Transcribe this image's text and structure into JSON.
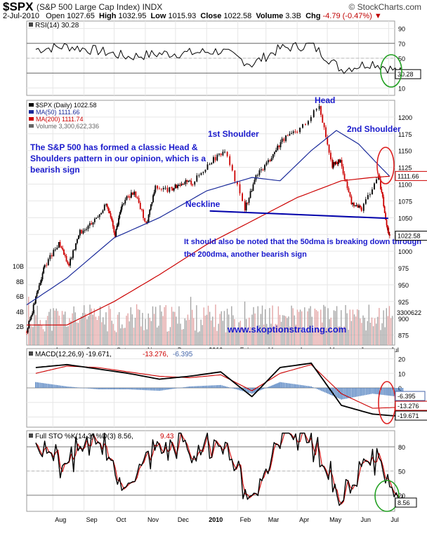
{
  "header": {
    "symbol": "$SPX",
    "description": "(S&P 500 Large Cap Index)",
    "exchange": "INDX",
    "brand": "© StockCharts.com",
    "date": "2-Jul-2010",
    "open_label": "Open",
    "open": "1027.65",
    "high_label": "High",
    "high": "1032.95",
    "low_label": "Low",
    "low": "1015.93",
    "close_label": "Close",
    "close": "1022.58",
    "volume_label": "Volume",
    "volume": "3.3B",
    "chg_label": "Chg",
    "chg": "-4.79 (-0.47%)",
    "chg_arrow": "▼"
  },
  "colors": {
    "price": "#000000",
    "up_candle": "#000000",
    "down_candle": "#cc0000",
    "ma50": "#1a2a9a",
    "ma200": "#cc0000",
    "volume_up": "#a6a6a6",
    "volume_down": "#e4a6a6",
    "annotation": "#1a1acc",
    "highlight": "#22a022",
    "macd_hist": "#4477bb"
  },
  "chart_data": [
    {
      "id": "rsi",
      "type": "line",
      "legend": "RSI(14) 30.28",
      "y_ticks": [
        10,
        30,
        50,
        70,
        90
      ],
      "ylim": [
        0,
        100
      ],
      "last_value_label": "30.28",
      "x": [
        "2009-07",
        "2009-08",
        "2009-09",
        "2009-10",
        "2009-11",
        "2009-12",
        "2010-01",
        "2010-02",
        "2010-03",
        "2010-04",
        "2010-05",
        "2010-06",
        "2010-07"
      ],
      "values": [
        62,
        66,
        60,
        52,
        56,
        57,
        60,
        42,
        63,
        68,
        35,
        44,
        30
      ]
    },
    {
      "id": "price",
      "type": "line",
      "legend": [
        {
          "name": "$SPX (Daily) 1022.58"
        },
        {
          "name": "MA(50) 1111.66"
        },
        {
          "name": "MA(200) 1111.74"
        },
        {
          "name": "Volume 3,300,622,336"
        }
      ],
      "y_ticks": [
        875,
        900,
        925,
        950,
        975,
        1000,
        1025,
        1050,
        1075,
        1100,
        1125,
        1150,
        1175,
        1200
      ],
      "ylim": [
        860,
        1225
      ],
      "volume_ticks": [
        "2B",
        "4B",
        "6B",
        "8B",
        "10B"
      ],
      "x_ticks": [
        "Aug",
        "Sep",
        "Oct",
        "Nov",
        "Dec",
        "2010",
        "Feb",
        "Mar",
        "Apr",
        "May",
        "Jun",
        "Jul"
      ],
      "series": [
        {
          "name": "$SPX",
          "x": [
            "2009-07-06",
            "2009-07-15",
            "2009-07-24",
            "2009-08-07",
            "2009-08-17",
            "2009-08-28",
            "2009-09-10",
            "2009-09-23",
            "2009-10-02",
            "2009-10-09",
            "2009-10-21",
            "2009-11-02",
            "2009-11-11",
            "2009-11-27",
            "2009-12-07",
            "2009-12-18",
            "2010-01-04",
            "2010-01-19",
            "2010-02-08",
            "2010-02-19",
            "2010-03-05",
            "2010-03-17",
            "2010-04-01",
            "2010-04-23",
            "2010-05-06",
            "2010-05-14",
            "2010-05-25",
            "2010-06-04",
            "2010-06-21",
            "2010-06-29",
            "2010-07-02"
          ],
          "values": [
            880,
            930,
            979,
            1010,
            980,
            1028,
            1045,
            1070,
            1025,
            1072,
            1090,
            1040,
            1095,
            1091,
            1103,
            1102,
            1133,
            1150,
            1064,
            1110,
            1138,
            1166,
            1178,
            1217,
            1128,
            1135,
            1070,
            1064,
            1113,
            1041,
            1022
          ]
        },
        {
          "name": "MA(50)",
          "x": [
            "2009-07-06",
            "2009-08-15",
            "2009-10-01",
            "2009-11-15",
            "2010-01-01",
            "2010-02-15",
            "2010-03-15",
            "2010-04-15",
            "2010-05-10",
            "2010-06-01",
            "2010-06-20",
            "2010-07-02"
          ],
          "values": [
            920,
            960,
            1020,
            1050,
            1090,
            1110,
            1105,
            1150,
            1180,
            1160,
            1130,
            1111.66
          ]
        },
        {
          "name": "MA(200)",
          "x": [
            "2009-07-06",
            "2009-08-15",
            "2009-10-01",
            "2009-11-15",
            "2010-01-01",
            "2010-02-15",
            "2010-04-01",
            "2010-05-15",
            "2010-06-15",
            "2010-07-02"
          ],
          "values": [
            890,
            890,
            925,
            965,
            1010,
            1045,
            1080,
            1105,
            1110,
            1111.74
          ]
        }
      ],
      "last_labels": [
        "1111.66",
        "1022.58",
        "3300622"
      ],
      "annotations": [
        "Head",
        "1st Shoulder",
        "2nd Shoulder",
        "The S&P 500 has formed a classic Head & Shoulders pattern in our opinion, which is a bearish sign",
        "Neckline",
        "It should also be noted that the 50dma is breaking down through the 200dma, another bearish sign",
        "www.skoptionstrading.com"
      ],
      "neckline": {
        "from": {
          "x": "2010-02-08",
          "y": 1058
        },
        "to": {
          "x": "2010-07-02",
          "y": 1049
        }
      }
    },
    {
      "id": "macd",
      "type": "line",
      "legend": "MACD(12,26,9) -19.671, -13.276, -6.395",
      "legend_parts": [
        "MACD(12,26,9) -19.671,",
        "-13.276,",
        "-6.395"
      ],
      "y_ticks": [
        -20,
        -10,
        0,
        10,
        20
      ],
      "ylim": [
        -27,
        27
      ],
      "last_labels": [
        "-6.395",
        "-13.276",
        "-19.671"
      ],
      "x": [
        "2009-07",
        "2009-08",
        "2009-09",
        "2009-10",
        "2009-11",
        "2009-12",
        "2010-01",
        "2010-02",
        "2010-03",
        "2010-04",
        "2010-05",
        "2010-06",
        "2010-07"
      ],
      "series": [
        {
          "name": "MACD",
          "values": [
            14,
            16,
            13,
            10,
            6,
            8,
            11,
            -6,
            14,
            17,
            -12,
            -18,
            -19.671
          ]
        },
        {
          "name": "Signal",
          "values": [
            10,
            15,
            14,
            11,
            8,
            7,
            9,
            -2,
            10,
            16,
            -4,
            -14,
            -13.276
          ]
        },
        {
          "name": "Histogram",
          "values": [
            4,
            1,
            -1,
            -1,
            -2,
            1,
            2,
            -4,
            4,
            1,
            -8,
            -4,
            -6.395
          ]
        }
      ]
    },
    {
      "id": "sto",
      "type": "line",
      "legend": "Full STO %K(14,3) %D(3) 8.56, 9.43",
      "legend_parts": [
        "Full STO %K(14,3) %D(3) 8.56,",
        "9.43"
      ],
      "y_ticks": [
        20,
        50,
        80
      ],
      "ylim": [
        0,
        100
      ],
      "last_value_label": "8.56",
      "x_ticks": [
        "Aug",
        "Sep",
        "Oct",
        "Nov",
        "Dec",
        "2010",
        "Feb",
        "Mar",
        "Apr",
        "May",
        "Jun",
        "Jul"
      ],
      "x": [
        "2009-07",
        "2009-08",
        "2009-09",
        "2009-10",
        "2009-11",
        "2009-12",
        "2010-01",
        "2010-02",
        "2010-03",
        "2010-04",
        "2010-05",
        "2010-06",
        "2010-07"
      ],
      "series": [
        {
          "name": "%K",
          "values": [
            85,
            60,
            90,
            30,
            88,
            75,
            82,
            12,
            92,
            88,
            10,
            70,
            8.56
          ]
        },
        {
          "name": "%D",
          "values": [
            80,
            65,
            86,
            35,
            84,
            77,
            80,
            18,
            88,
            87,
            15,
            62,
            9.43
          ]
        }
      ]
    }
  ]
}
